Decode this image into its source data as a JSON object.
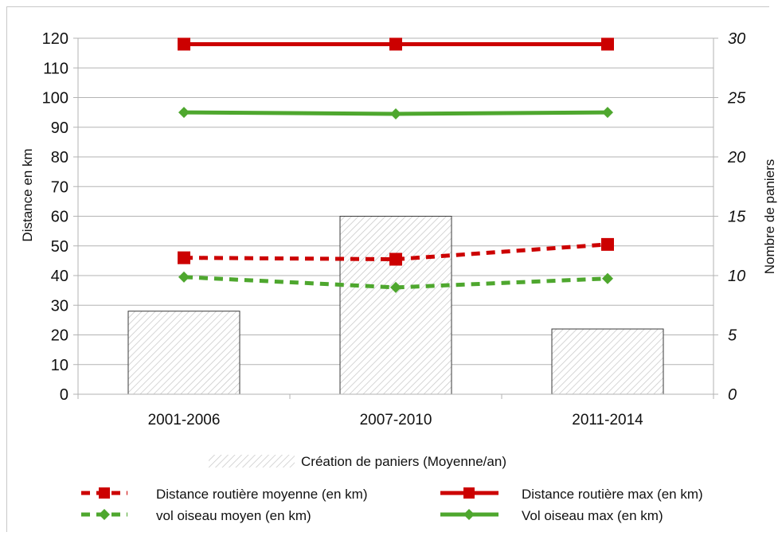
{
  "chart_data": {
    "type": "bar+line",
    "categories": [
      "2001-2006",
      "2007-2010",
      "2011-2014"
    ],
    "bars": {
      "name": "Création de paniers (Moyenne/an)",
      "axis": "right",
      "values": [
        7,
        15,
        5.5
      ],
      "fill_pattern": "hatched",
      "color": "#bdbdbd"
    },
    "series": [
      {
        "name": "Distance routière moyenne (en km)",
        "axis": "left",
        "values": [
          46,
          45.5,
          50.5
        ],
        "color": "#cc0000",
        "style": "dashed",
        "marker": "square"
      },
      {
        "name": "vol oiseau moyen (en km)",
        "axis": "left",
        "values": [
          39.5,
          36,
          39
        ],
        "color": "#4ea72e",
        "style": "dashed",
        "marker": "diamond"
      },
      {
        "name": "Distance routière max (en km)",
        "axis": "left",
        "values": [
          118,
          118,
          118
        ],
        "color": "#cc0000",
        "style": "solid",
        "marker": "square"
      },
      {
        "name": "Vol oiseau max (en km)",
        "axis": "left",
        "values": [
          95,
          94.5,
          95
        ],
        "color": "#4ea72e",
        "style": "solid",
        "marker": "diamond"
      }
    ],
    "ylabel": "Distance en km",
    "ylabel_right": "Nombre de paniers",
    "ylim": [
      0,
      120
    ],
    "ylim_right": [
      0,
      30
    ],
    "yticks": [
      "0",
      "10",
      "20",
      "30",
      "40",
      "50",
      "60",
      "70",
      "80",
      "90",
      "100",
      "110",
      "120"
    ],
    "yticks_right": [
      "0",
      "5",
      "10",
      "15",
      "20",
      "25",
      "30"
    ],
    "grid": true,
    "legend_placement": "bottom"
  }
}
